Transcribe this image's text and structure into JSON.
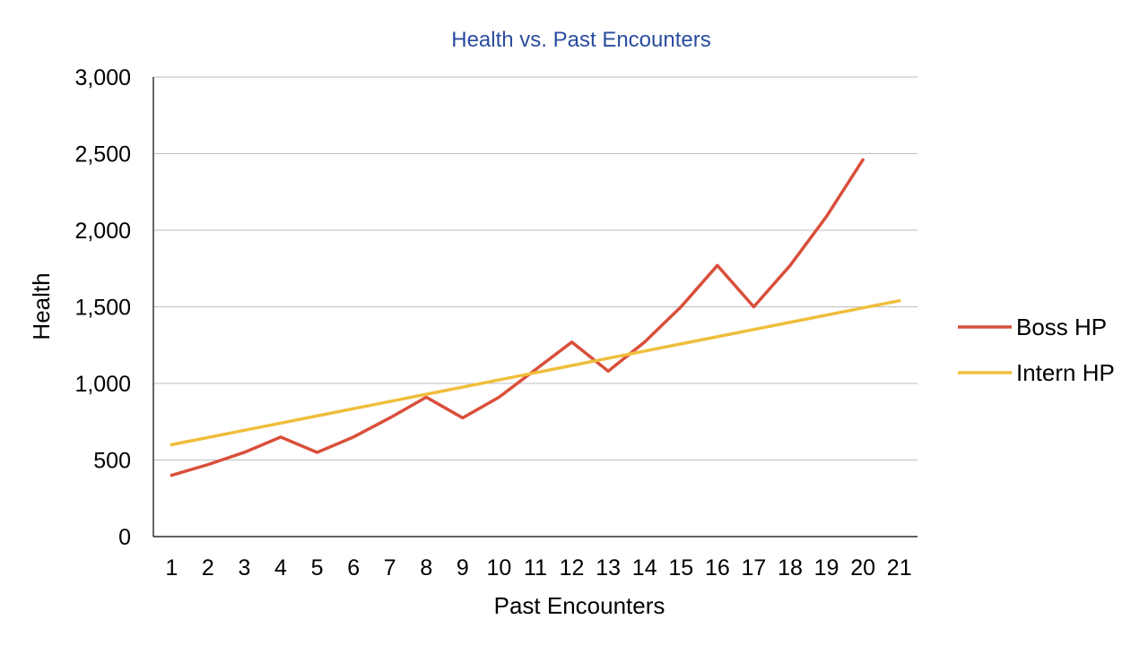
{
  "chart_data": {
    "type": "line",
    "title": "Health vs. Past Encounters",
    "xlabel": "Past Encounters",
    "ylabel": "Health",
    "x": [
      1,
      2,
      3,
      4,
      5,
      6,
      7,
      8,
      9,
      10,
      11,
      12,
      13,
      14,
      15,
      16,
      17,
      18,
      19,
      20,
      21
    ],
    "x_tick_labels": [
      "1",
      "2",
      "3",
      "4",
      "5",
      "6",
      "7",
      "8",
      "9",
      "10",
      "11",
      "12",
      "13",
      "14",
      "15",
      "16",
      "17",
      "18",
      "19",
      "20",
      "21"
    ],
    "ylim": [
      0,
      3000
    ],
    "y_ticks": [
      0,
      500,
      1000,
      1500,
      2000,
      2500,
      3000
    ],
    "y_tick_labels": [
      "0",
      "500",
      "1,000",
      "1,500",
      "2,000",
      "2,500",
      "3,000"
    ],
    "grid": "horizontal",
    "legend_position": "right",
    "series": [
      {
        "name": "Boss HP",
        "color": "#d94f3a",
        "values": [
          400,
          470,
          550,
          650,
          550,
          650,
          775,
          910,
          775,
          910,
          1090,
          1270,
          1080,
          1270,
          1500,
          1770,
          1500,
          1770,
          2090,
          2460,
          null
        ]
      },
      {
        "name": "Intern HP",
        "color": "#f0be3c",
        "values": [
          600,
          647,
          694,
          741,
          788,
          835,
          882,
          929,
          976,
          1023,
          1070,
          1117,
          1164,
          1211,
          1258,
          1305,
          1352,
          1399,
          1446,
          1493,
          1540
        ]
      }
    ]
  }
}
